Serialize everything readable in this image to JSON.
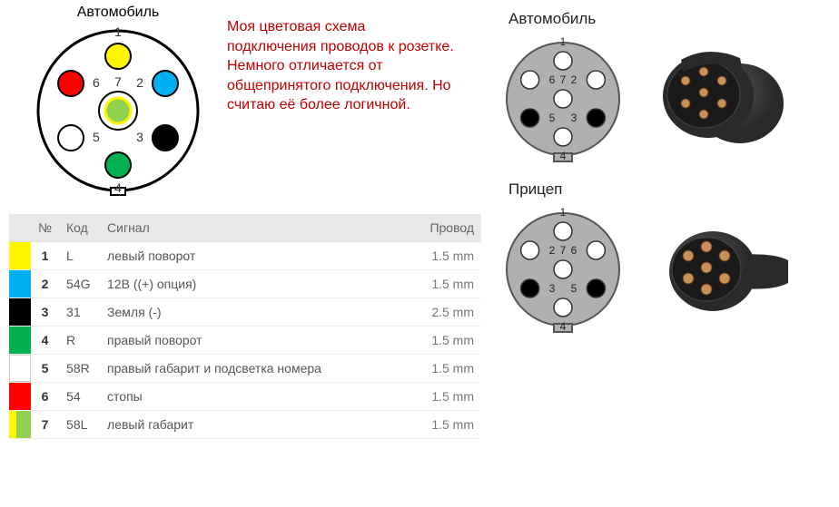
{
  "main_connector": {
    "title": "Автомобиль",
    "outer_radius": 88,
    "outer_stroke": "#000000",
    "outer_stroke_width": 3,
    "inner_ring_radius": 21,
    "pin_radius": 14,
    "label_fontsize": 14,
    "label_color": "#333333",
    "pins": [
      {
        "n": "1",
        "fill": "#fff600",
        "stroke": "#000000",
        "angle": 90,
        "r": 60,
        "label_pos": "above"
      },
      {
        "n": "2",
        "fill": "#00b0f0",
        "stroke": "#000000",
        "angle": 30,
        "r": 60,
        "label_pos": "left"
      },
      {
        "n": "3",
        "fill": "#000000",
        "stroke": "#000000",
        "angle": -30,
        "r": 60,
        "label_pos": "left"
      },
      {
        "n": "4",
        "fill": "#00b050",
        "stroke": "#000000",
        "angle": -90,
        "r": 60,
        "label_pos": "below"
      },
      {
        "n": "5",
        "fill": "#ffffff",
        "stroke": "#000000",
        "angle": -150,
        "r": 60,
        "label_pos": "right"
      },
      {
        "n": "6",
        "fill": "#ff0000",
        "stroke": "#000000",
        "angle": 150,
        "r": 60,
        "label_pos": "right"
      },
      {
        "n": "7",
        "fill": "#92d050",
        "stroke": "#fff600",
        "angle": 0,
        "r": 0,
        "label_pos": "above",
        "center_ring": true
      }
    ]
  },
  "description_text": "Моя цветовая схема подключения проводов к розетке. Немного отличается от общепринятого подключения. Но считаю её более логичной.",
  "description_color": "#c00000",
  "table": {
    "header_bg": "#e8e8e8",
    "columns": [
      "",
      "№",
      "Код",
      "Сигнал",
      "Провод"
    ],
    "rows": [
      {
        "swatch": "#fff600",
        "swatch2": null,
        "num": "1",
        "code": "L",
        "signal": "левый поворот",
        "wire": "1.5 mm"
      },
      {
        "swatch": "#00b0f0",
        "swatch2": null,
        "num": "2",
        "code": "54G",
        "signal": "12В ((+) опция)",
        "wire": "1.5 mm"
      },
      {
        "swatch": "#000000",
        "swatch2": null,
        "num": "3",
        "code": "31",
        "signal": "Земля (-)",
        "wire": "2.5 mm"
      },
      {
        "swatch": "#00b050",
        "swatch2": null,
        "num": "4",
        "code": "R",
        "signal": "правый поворот",
        "wire": "1.5 mm"
      },
      {
        "swatch": "#ffffff",
        "swatch2": null,
        "num": "5",
        "code": "58R",
        "signal": "правый габарит и подсветка номера",
        "wire": "1.5 mm"
      },
      {
        "swatch": "#ff0000",
        "swatch2": null,
        "num": "6",
        "code": "54",
        "signal": "стопы",
        "wire": "1.5 mm"
      },
      {
        "swatch": "#92d050",
        "swatch2": "#fff600",
        "num": "7",
        "code": "58L",
        "signal": "левый габарит",
        "wire": "1.5 mm"
      }
    ]
  },
  "ref_diagrams": {
    "car": {
      "title": "Автомобиль",
      "outer_fill": "#b0b0b0",
      "outer_radius": 62,
      "pin_radius": 10,
      "pins": [
        {
          "n": "1",
          "fill": "#ffffff",
          "angle": 90,
          "r": 42
        },
        {
          "n": "2",
          "fill": "#ffffff",
          "angle": 30,
          "r": 42
        },
        {
          "n": "3",
          "fill": "#000000",
          "angle": -30,
          "r": 42
        },
        {
          "n": "4",
          "fill": "#ffffff",
          "angle": -90,
          "r": 42
        },
        {
          "n": "5",
          "fill": "#000000",
          "angle": -150,
          "r": 42
        },
        {
          "n": "6",
          "fill": "#ffffff",
          "angle": 150,
          "r": 42
        },
        {
          "n": "7",
          "fill": "#ffffff",
          "angle": 0,
          "r": 0
        }
      ]
    },
    "trailer": {
      "title": "Прицеп",
      "outer_fill": "#b0b0b0",
      "outer_radius": 62,
      "pin_radius": 10,
      "pins": [
        {
          "n": "1",
          "fill": "#ffffff",
          "angle": 90,
          "r": 42
        },
        {
          "n": "6",
          "fill": "#ffffff",
          "angle": 30,
          "r": 42
        },
        {
          "n": "5",
          "fill": "#000000",
          "angle": -30,
          "r": 42
        },
        {
          "n": "4",
          "fill": "#ffffff",
          "angle": -90,
          "r": 42
        },
        {
          "n": "3",
          "fill": "#000000",
          "angle": -150,
          "r": 42
        },
        {
          "n": "2",
          "fill": "#ffffff",
          "angle": 150,
          "r": 42
        },
        {
          "n": "7",
          "fill": "#ffffff",
          "angle": 0,
          "r": 0
        }
      ]
    }
  },
  "photos": {
    "socket": {
      "body": "#2a2a2a",
      "pin": "#c89058"
    },
    "plug": {
      "body": "#2a2a2a",
      "pin": "#c89058"
    }
  }
}
